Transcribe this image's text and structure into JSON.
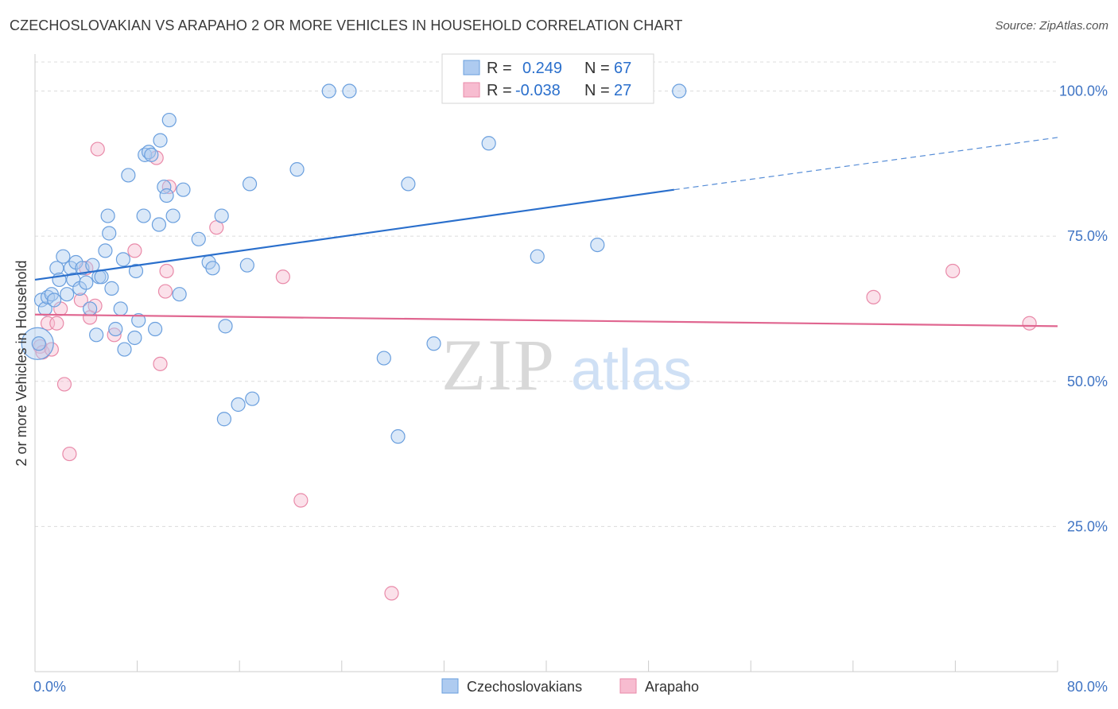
{
  "title": "CZECHOSLOVAKIAN VS ARAPAHO 2 OR MORE VEHICLES IN HOUSEHOLD CORRELATION CHART",
  "source": "Source: ZipAtlas.com",
  "watermark": {
    "zip": "ZIP",
    "atlas": "atlas"
  },
  "colors": {
    "blue_fill": "#aecbf0",
    "blue_stroke": "#6a9fde",
    "blue_line": "#2a6fcc",
    "pink_fill": "#f7bcd0",
    "pink_stroke": "#e98aa9",
    "pink_line": "#e06690",
    "tick_text": "#3f74c4",
    "grid": "#dcdcdc"
  },
  "legend_top": {
    "rows": [
      {
        "r_label": "R = ",
        "r_value": "0.249",
        "n_label": "N = ",
        "n_value": "67",
        "series": "blue"
      },
      {
        "r_label": "R = ",
        "r_value": "-0.038",
        "n_label": "N = ",
        "n_value": "27",
        "series": "pink"
      }
    ]
  },
  "chart_data": {
    "type": "scatter",
    "title": "CZECHOSLOVAKIAN VS ARAPAHO 2 OR MORE VEHICLES IN HOUSEHOLD CORRELATION CHART",
    "xlabel": "",
    "ylabel": "2 or more Vehicles in Household",
    "xlim": [
      0,
      80
    ],
    "ylim": [
      0,
      105
    ],
    "x_tick_labels": [
      "0.0%",
      "80.0%"
    ],
    "y_ticks": [
      25,
      50,
      75,
      100
    ],
    "y_tick_labels": [
      "25.0%",
      "50.0%",
      "75.0%",
      "100.0%"
    ],
    "grid": true,
    "legend_position": "bottom-center",
    "series": [
      {
        "name": "Czechoslovakians",
        "color": "blue",
        "trend": {
          "x0": 0,
          "y0": 67.5,
          "x1": 50,
          "y1": 83,
          "dash_x1": 80,
          "dash_y1": 92
        },
        "points": [
          [
            0.5,
            64
          ],
          [
            0.8,
            62.5
          ],
          [
            1,
            64.5
          ],
          [
            1.3,
            65
          ],
          [
            1.5,
            64
          ],
          [
            1.7,
            69.5
          ],
          [
            1.9,
            67.5
          ],
          [
            2.2,
            71.5
          ],
          [
            2.5,
            65
          ],
          [
            2.8,
            69.5
          ],
          [
            3,
            67.5
          ],
          [
            3.2,
            70.5
          ],
          [
            3.5,
            66
          ],
          [
            3.7,
            69.5
          ],
          [
            4,
            67
          ],
          [
            4.3,
            62.5
          ],
          [
            4.5,
            70
          ],
          [
            4.8,
            58
          ],
          [
            5,
            68
          ],
          [
            5.2,
            68
          ],
          [
            5.5,
            72.5
          ],
          [
            5.7,
            78.5
          ],
          [
            5.8,
            75.5
          ],
          [
            6,
            66
          ],
          [
            6.3,
            59
          ],
          [
            6.7,
            62.5
          ],
          [
            6.9,
            71
          ],
          [
            7,
            55.5
          ],
          [
            7.3,
            85.5
          ],
          [
            7.8,
            57.5
          ],
          [
            7.9,
            69
          ],
          [
            8.1,
            60.5
          ],
          [
            8.5,
            78.5
          ],
          [
            8.6,
            89
          ],
          [
            8.9,
            89.5
          ],
          [
            9.1,
            89
          ],
          [
            9.4,
            59
          ],
          [
            9.7,
            77
          ],
          [
            9.8,
            91.5
          ],
          [
            10.1,
            83.5
          ],
          [
            10.3,
            82
          ],
          [
            10.5,
            95
          ],
          [
            10.8,
            78.5
          ],
          [
            11.3,
            65
          ],
          [
            11.6,
            83
          ],
          [
            12.8,
            74.5
          ],
          [
            13.6,
            70.5
          ],
          [
            13.9,
            69.5
          ],
          [
            14.6,
            78.5
          ],
          [
            14.8,
            43.5
          ],
          [
            14.9,
            59.5
          ],
          [
            15.9,
            46
          ],
          [
            16.6,
            70
          ],
          [
            16.8,
            84
          ],
          [
            17,
            47
          ],
          [
            20.5,
            86.5
          ],
          [
            23,
            100
          ],
          [
            24.6,
            100
          ],
          [
            27.3,
            54
          ],
          [
            28.4,
            40.5
          ],
          [
            29.2,
            84
          ],
          [
            31.2,
            56.5
          ],
          [
            35.5,
            91
          ],
          [
            39.3,
            71.5
          ],
          [
            44,
            73.5
          ],
          [
            50.4,
            100
          ],
          [
            0.3,
            56.5
          ]
        ],
        "big_point": [
          0.2,
          56.5
        ]
      },
      {
        "name": "Arapaho",
        "color": "pink",
        "trend": {
          "x0": 0,
          "y0": 61.5,
          "x1": 80,
          "y1": 59.5
        },
        "points": [
          [
            0.4,
            56
          ],
          [
            0.6,
            55
          ],
          [
            1,
            60
          ],
          [
            1.3,
            55.5
          ],
          [
            1.7,
            60
          ],
          [
            2,
            62.5
          ],
          [
            2.3,
            49.5
          ],
          [
            2.7,
            37.5
          ],
          [
            3.6,
            64
          ],
          [
            4.3,
            61
          ],
          [
            4.7,
            63
          ],
          [
            4.9,
            90
          ],
          [
            6.2,
            58
          ],
          [
            7.8,
            72.5
          ],
          [
            9.5,
            88.5
          ],
          [
            9.8,
            53
          ],
          [
            10.2,
            65.5
          ],
          [
            10.3,
            69
          ],
          [
            10.5,
            83.5
          ],
          [
            14.2,
            76.5
          ],
          [
            19.4,
            68
          ],
          [
            20.8,
            29.5
          ],
          [
            27.9,
            13.5
          ],
          [
            65.6,
            64.5
          ],
          [
            71.8,
            69
          ],
          [
            77.8,
            60
          ],
          [
            4,
            69.5
          ]
        ]
      }
    ]
  },
  "legend_bottom": {
    "items": [
      "Czechoslovakians",
      "Arapaho"
    ]
  }
}
